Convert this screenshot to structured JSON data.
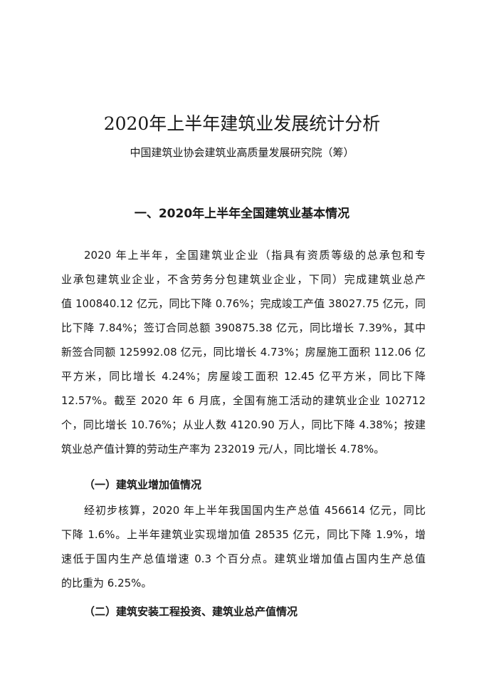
{
  "document": {
    "title": "2020年上半年建筑业发展统计分析",
    "author": "中国建筑业协会建筑业高质量发展研究院（筹）",
    "section_heading": "一、2020年上半年全国建筑业基本情况",
    "paragraph1_lines": [
      "2020 年上半年，全国建筑业企业（指具有资质等级的总承包和专",
      "业承包建筑业企业，不含劳务分包建筑业企业，下同）完成建筑业总产",
      "值 100840.12 亿元，同比下降 0.76%；完成竣工产值 38027.75 亿元，同",
      "比下降 7.84%；签订合同总额 390875.38 亿元，同比增长 7.39%，其中",
      "新签合同额 125992.08 亿元，同比增长 4.73%；房屋施工面积 112.06 亿",
      "平方米，同比增长 4.24%；房屋竣工面积 12.45 亿平方米，同比下降",
      "12.57%。截至 2020 年 6 月底，全国有施工活动的建筑业企业 102712",
      "个，同比增长 10.76%；从业人数 4120.90 万人，同比下降 4.38%；按建",
      "筑业总产值计算的劳动生产率为 232019 元/人，同比增长 4.78%。"
    ],
    "subheading1": "（一）建筑业增加值情况",
    "paragraph2_lines": [
      "经初步核算，2020 年上半年我国国内生产总值 456614 亿元，同比",
      "下降 1.6%。上半年建筑业实现增加值 28535 亿元，同比下降 1.9%，增",
      "速低于国内生产总值增速 0.3 个百分点。建筑业增加值占国内生产总值",
      "的比重为 6.25%。"
    ],
    "subheading2": "（二）建筑安装工程投资、建筑业总产值情况"
  }
}
